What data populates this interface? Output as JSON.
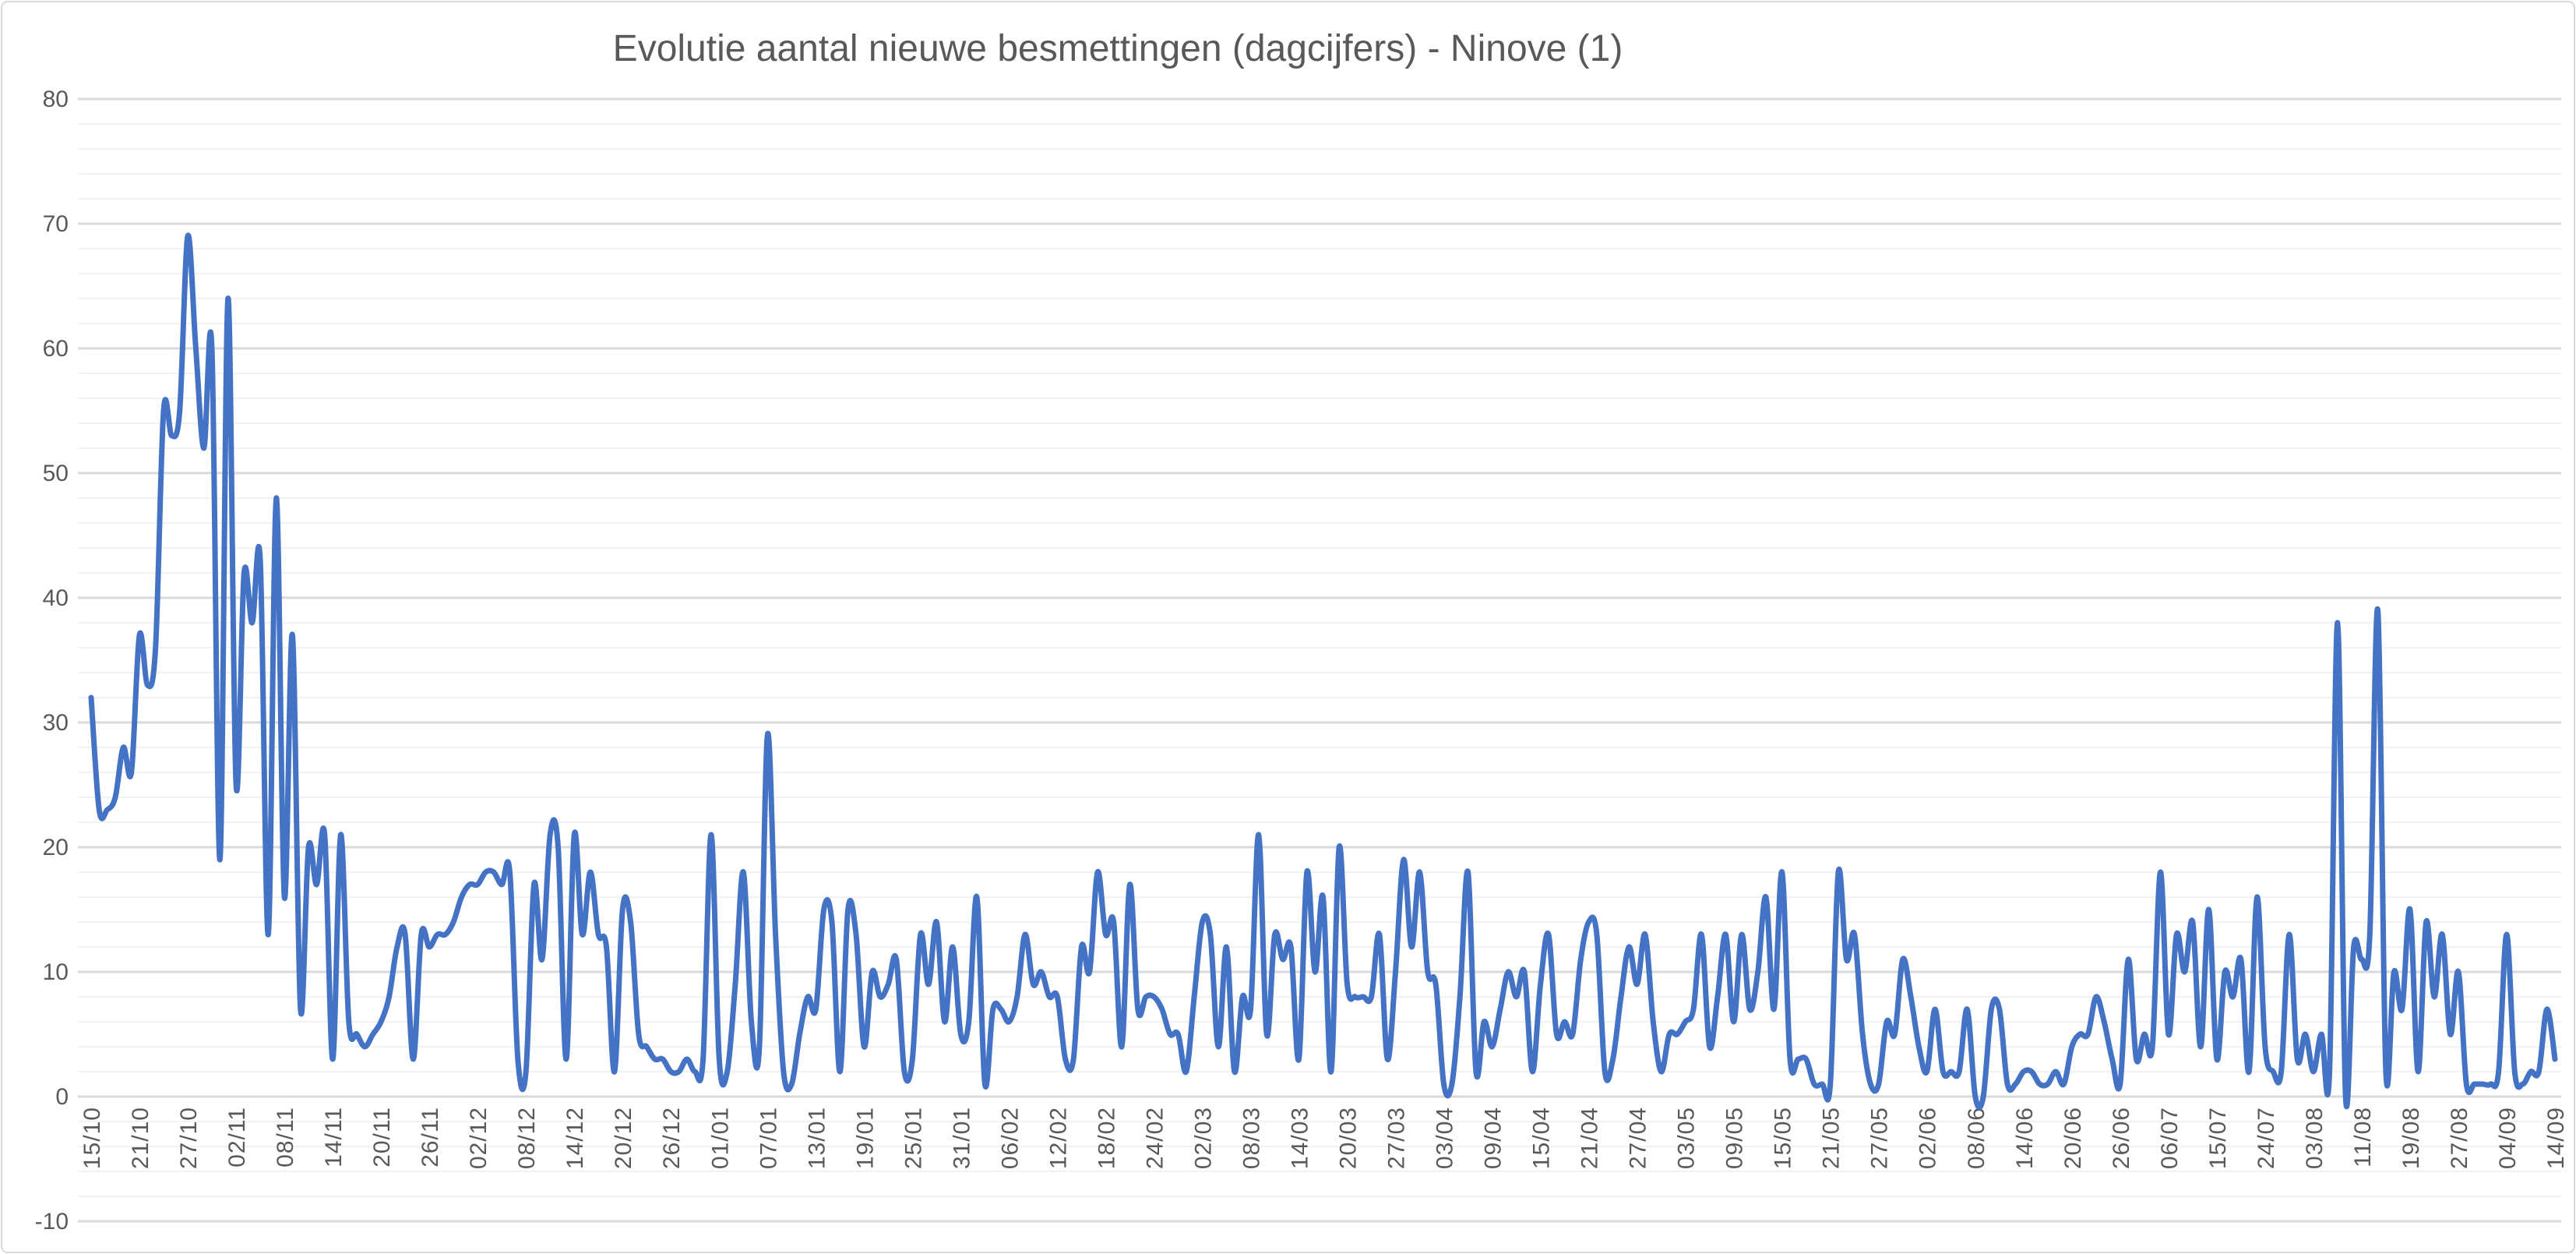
{
  "title": "Evolutie aantal nieuwe besmettingen (dagcijfers) - Ninove (1)",
  "colors": {
    "line": "#4472C4",
    "title_text": "#595959",
    "axis_text": "#595959",
    "gridline_major": "#D9D9D9",
    "gridline_minor": "#F2F2F2",
    "border": "#D9D9D9",
    "background": "#FFFFFF"
  },
  "chart_data": {
    "type": "line",
    "title": "Evolutie aantal nieuwe besmettingen (dagcijfers) - Ninove (1)",
    "xlabel": "",
    "ylabel": "",
    "ylim": [
      -10,
      80
    ],
    "y_ticks": [
      80,
      70,
      60,
      50,
      40,
      30,
      20,
      10,
      0,
      -10
    ],
    "minor_unit": 2,
    "major_unit": 10,
    "grid": "horizontal major+minor",
    "legend": "none",
    "smooth": true,
    "label_every": 6,
    "x_tick_labels": [
      "15/10",
      "21/10",
      "27/10",
      "02/11",
      "08/11",
      "14/11",
      "20/11",
      "26/11",
      "02/12",
      "08/12",
      "14/12",
      "20/12",
      "26/12",
      "01/01",
      "07/01",
      "13/01",
      "19/01",
      "25/01",
      "31/01",
      "06/02",
      "12/02",
      "18/02",
      "24/02",
      "02/03",
      "08/03",
      "14/03",
      "20/03",
      "27/03",
      "03/04",
      "09/04",
      "15/04",
      "21/04",
      "27/04",
      "03/05",
      "09/05",
      "15/05",
      "21/05",
      "27/05",
      "02/06",
      "08/06",
      "14/06",
      "20/06",
      "26/06",
      "06/07",
      "15/07",
      "24/07",
      "03/08",
      "11/08",
      "19/08",
      "27/08",
      "04/09",
      "14/09"
    ],
    "values": [
      32,
      23,
      23,
      24,
      28,
      26,
      37,
      33,
      36,
      55,
      53,
      55,
      69,
      60,
      52,
      60,
      19,
      64,
      25,
      42,
      38,
      43,
      13,
      48,
      16,
      37,
      7,
      20,
      17,
      21,
      3,
      21,
      6,
      5,
      4,
      5,
      6,
      8,
      12,
      13,
      3,
      13,
      12,
      13,
      13,
      14,
      16,
      17,
      17,
      18,
      18,
      17,
      18,
      3,
      2,
      17,
      11,
      21,
      20,
      3,
      21,
      13,
      18,
      13,
      12,
      2,
      15,
      14,
      5,
      4,
      3,
      3,
      2,
      2,
      3,
      2,
      3,
      21,
      3,
      2,
      9,
      18,
      6,
      4,
      29,
      13,
      2,
      1,
      5,
      8,
      7,
      15,
      14,
      2,
      15,
      13,
      4,
      10,
      8,
      9,
      11,
      2,
      3,
      13,
      9,
      14,
      6,
      12,
      5,
      6,
      16,
      1,
      7,
      7,
      6,
      8,
      13,
      9,
      10,
      8,
      8,
      3,
      3,
      12,
      10,
      18,
      13,
      14,
      4,
      17,
      7,
      8,
      8,
      7,
      5,
      5,
      2,
      8,
      14,
      13,
      4,
      12,
      2,
      8,
      7,
      21,
      5,
      13,
      11,
      12,
      3,
      18,
      10,
      16,
      2,
      20,
      9,
      8,
      8,
      8,
      13,
      3,
      10,
      19,
      12,
      18,
      10,
      9,
      1,
      1,
      8,
      18,
      2,
      6,
      4,
      7,
      10,
      8,
      10,
      2,
      9,
      13,
      5,
      6,
      5,
      11,
      14,
      13,
      2,
      3,
      8,
      12,
      9,
      13,
      6,
      2,
      5,
      5,
      6,
      7,
      13,
      4,
      8,
      13,
      6,
      13,
      7,
      10,
      16,
      7,
      18,
      3,
      3,
      3,
      1,
      1,
      1,
      18,
      11,
      13,
      5,
      1,
      1,
      6,
      5,
      11,
      8,
      4,
      2,
      7,
      2,
      2,
      2,
      7,
      0,
      0,
      7,
      7,
      1,
      1,
      2,
      2,
      1,
      1,
      2,
      1,
      4,
      5,
      5,
      8,
      6,
      3,
      1,
      11,
      3,
      5,
      4,
      18,
      5,
      13,
      10,
      14,
      4,
      15,
      3,
      10,
      8,
      11,
      2,
      16,
      4,
      2,
      2,
      13,
      3,
      5,
      2,
      5,
      2,
      38,
      0,
      12,
      11,
      13,
      39,
      2,
      10,
      7,
      15,
      2,
      14,
      8,
      13,
      5,
      10,
      1,
      1,
      1,
      1,
      2,
      13,
      2,
      1,
      2,
      2,
      7,
      3
    ]
  }
}
